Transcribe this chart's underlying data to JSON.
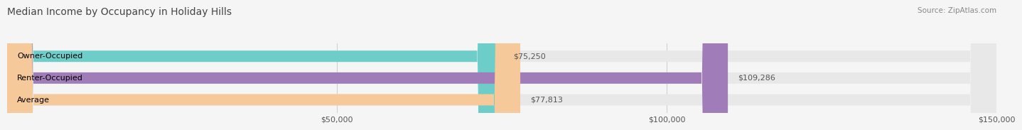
{
  "title": "Median Income by Occupancy in Holiday Hills",
  "source": "Source: ZipAtlas.com",
  "categories": [
    "Owner-Occupied",
    "Renter-Occupied",
    "Average"
  ],
  "values": [
    75250,
    109286,
    77813
  ],
  "bar_colors": [
    "#6dcdc8",
    "#a07db8",
    "#f5c99a"
  ],
  "bar_bg_color": "#e8e8e8",
  "value_labels": [
    "$75,250",
    "$109,286",
    "$77,813"
  ],
  "xlim": [
    0,
    150000
  ],
  "xticks": [
    50000,
    100000,
    150000
  ],
  "xtick_labels": [
    "$50,000",
    "$100,000",
    "$150,000"
  ],
  "title_fontsize": 10,
  "source_fontsize": 7.5,
  "label_fontsize": 8,
  "value_fontsize": 8,
  "bar_height": 0.52,
  "background_color": "#f5f5f5"
}
